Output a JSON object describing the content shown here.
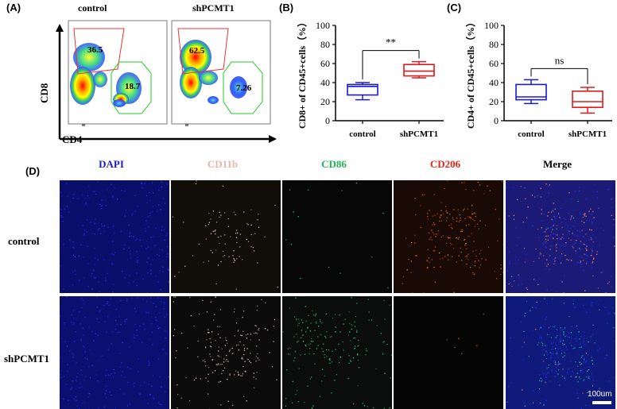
{
  "panels": {
    "A": "(A)",
    "B": "(B)",
    "C": "(C)",
    "D": "(D)"
  },
  "flow": {
    "samples": [
      {
        "title": "control",
        "upper_gate_value": "36.5",
        "lower_gate_value": "18.7"
      },
      {
        "title": "shPCMT1",
        "upper_gate_value": "62.5",
        "lower_gate_value": "7.26"
      }
    ],
    "y_axis_label": "CD8",
    "x_axis_label": "CD4"
  },
  "box_plots": [
    {
      "id": "B",
      "ylabel": "CD8+ of CD45+cells（%）",
      "ylim": [
        0,
        100
      ],
      "yticks": [
        "0",
        "20",
        "40",
        "60",
        "80",
        "100"
      ],
      "categories": [
        "control",
        "shPCMT1"
      ],
      "significance": "**",
      "colors": [
        "#1a1ad6",
        "#e01a1a"
      ]
    },
    {
      "id": "C",
      "ylabel": "CD4+ of CD45+cells（%）",
      "ylim": [
        0,
        100
      ],
      "yticks": [
        "0",
        "20",
        "40",
        "60",
        "80",
        "100"
      ],
      "categories": [
        "control",
        "shPCMT1"
      ],
      "significance": "ns",
      "colors": [
        "#1a1ad6",
        "#e01a1a"
      ]
    }
  ],
  "chart_data": [
    {
      "type": "box",
      "categories": [
        "control",
        "shPCMT1"
      ],
      "ylabel": "CD8+ of CD45+cells（%）",
      "ylim": [
        0,
        100
      ],
      "series": [
        {
          "name": "control",
          "min": 22,
          "q1": 27,
          "median": 36,
          "q3": 38,
          "max": 40
        },
        {
          "name": "shPCMT1",
          "min": 45,
          "q1": 47,
          "median": 52,
          "q3": 59,
          "max": 62
        }
      ],
      "annotation": "**"
    },
    {
      "type": "box",
      "categories": [
        "control",
        "shPCMT1"
      ],
      "ylabel": "CD4+ of CD45+cells（%）",
      "ylim": [
        0,
        100
      ],
      "series": [
        {
          "name": "control",
          "min": 18,
          "q1": 22,
          "median": 25,
          "q3": 38,
          "max": 43
        },
        {
          "name": "shPCMT1",
          "min": 8,
          "q1": 14,
          "median": 20,
          "q3": 31,
          "max": 35
        }
      ],
      "annotation": "ns"
    }
  ],
  "microscopy": {
    "channels": [
      {
        "label": "DAPI",
        "color": "#1a1acc"
      },
      {
        "label": "CD11b",
        "color": "#e8b4b0"
      },
      {
        "label": "CD86",
        "color": "#1fb45a"
      },
      {
        "label": "CD206",
        "color": "#e0251a"
      },
      {
        "label": "Merge",
        "color": "#000000"
      }
    ],
    "rows": [
      "control",
      "shPCMT1"
    ],
    "scale_bar": "100um"
  }
}
